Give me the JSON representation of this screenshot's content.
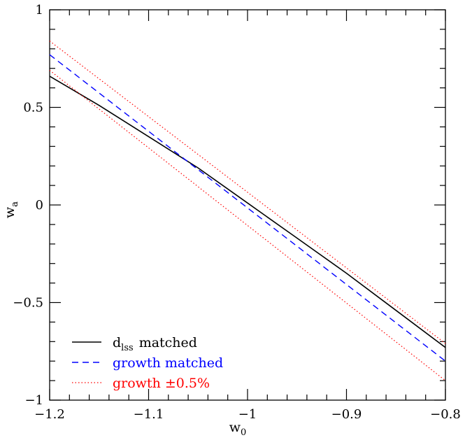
{
  "chart_data": {
    "type": "line",
    "xlabel": "w",
    "xlabel_sub": "0",
    "ylabel": "w",
    "ylabel_sub": "a",
    "xlim": [
      -1.2,
      -0.8
    ],
    "ylim": [
      -1,
      1
    ],
    "xticks": [
      -1.2,
      -1.1,
      -1.0,
      -0.9,
      -0.8
    ],
    "xtick_labels": [
      "−1.2",
      "−1.1",
      "−1",
      "−0.9",
      "−0.8"
    ],
    "yticks": [
      -1,
      -0.5,
      0,
      0.5,
      1
    ],
    "ytick_labels": [
      "−1",
      "−0.5",
      "0",
      "0.5",
      "1"
    ],
    "grid": false,
    "legend_position": "bottom-left",
    "series": [
      {
        "name": "matched",
        "name_prefix": "d",
        "name_sub": "lss",
        "style": "solid",
        "color": "#000000",
        "x": [
          -1.2,
          -1.15,
          -1.1,
          -1.05,
          -1.0,
          -0.95,
          -0.9,
          -0.85,
          -0.8
        ],
        "y": [
          0.66,
          0.51,
          0.35,
          0.19,
          0.01,
          -0.17,
          -0.35,
          -0.54,
          -0.73
        ]
      },
      {
        "name": "growth matched",
        "style": "dashed",
        "color": "#0000ff",
        "x": [
          -1.2,
          -0.8
        ],
        "y": [
          0.77,
          -0.8
        ]
      },
      {
        "name": "growth ±0.5%",
        "style": "dotted",
        "color": "#ff0000",
        "x": [
          -1.2,
          -0.8
        ],
        "y": [
          0.84,
          -0.71
        ]
      },
      {
        "name": "",
        "style": "dotted",
        "color": "#ff0000",
        "x": [
          -1.2,
          -0.8
        ],
        "y": [
          0.69,
          -0.9
        ]
      }
    ]
  }
}
